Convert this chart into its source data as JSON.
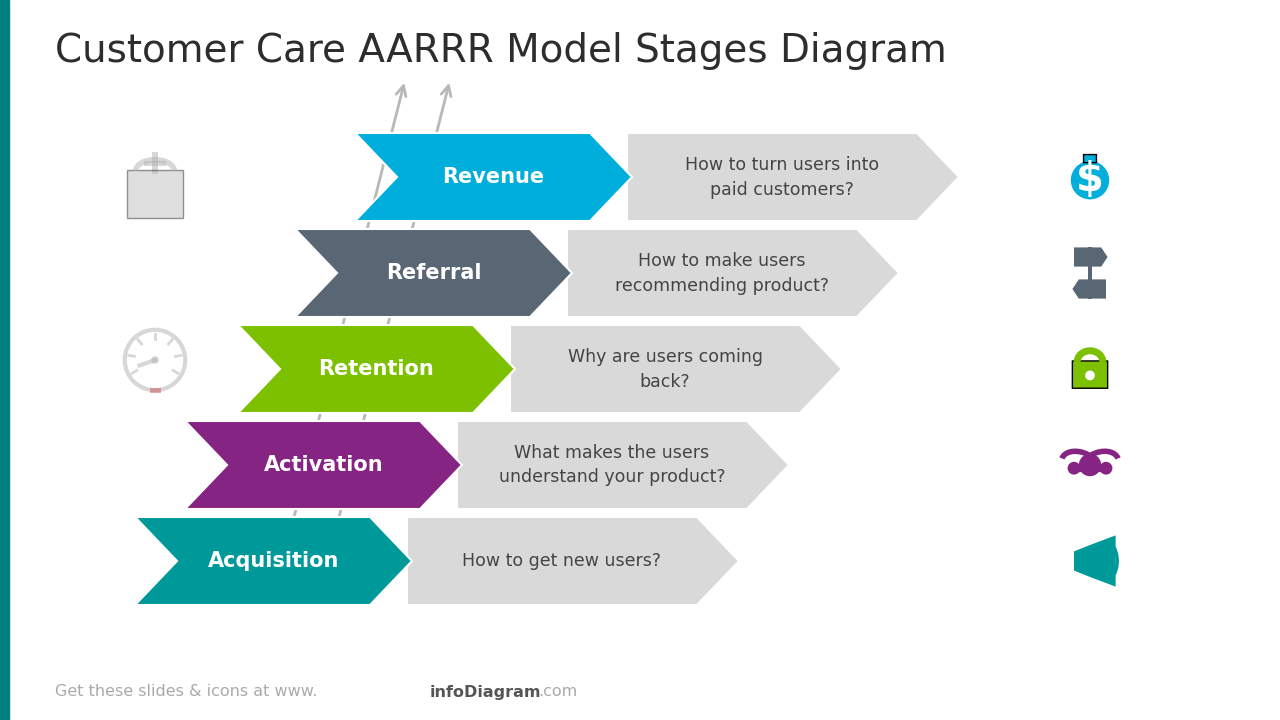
{
  "title": "Customer Care AARRR Model Stages Diagram",
  "title_fontsize": 28,
  "title_color": "#2d2d2d",
  "background_color": "#ffffff",
  "footer_color": "#aaaaaa",
  "footer_bold_color": "#555555",
  "teal_bar_color": "#008080",
  "stages": [
    {
      "label": "Acquisition",
      "color": "#009999",
      "description": "How to get new users?",
      "row": 0
    },
    {
      "label": "Activation",
      "color": "#862483",
      "description": "What makes the users\nunderstand your product?",
      "row": 1
    },
    {
      "label": "Retention",
      "color": "#7CC000",
      "description": "Why are users coming\nback?",
      "row": 2
    },
    {
      "label": "Referral",
      "color": "#596673",
      "description": "How to make users\nrecommending product?",
      "row": 3
    },
    {
      "label": "Revenue",
      "color": "#00AEDB",
      "description": "How to turn users into\npaid customers?",
      "row": 4
    }
  ],
  "label_color": "#ffffff",
  "desc_color": "#444444",
  "label_fontsize": 15,
  "desc_fontsize": 12.5
}
